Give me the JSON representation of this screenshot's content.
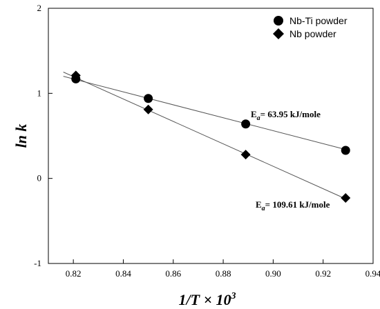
{
  "chart_data": {
    "type": "scatter",
    "xlabel": {
      "main": "1/T × 10",
      "sup": "3"
    },
    "ylabel": "ln k",
    "xlim": [
      0.81,
      0.94
    ],
    "ylim": [
      -1,
      2
    ],
    "x_ticks": [
      "0.82",
      "0.84",
      "0.86",
      "0.88",
      "0.90",
      "0.92",
      "0.94"
    ],
    "y_ticks": [
      "-1",
      "0",
      "1",
      "2"
    ],
    "grid": false,
    "legend_position": "top-right",
    "series": [
      {
        "name": "Nb-Ti powder",
        "marker": "circle",
        "color": "#000000",
        "x": [
          0.821,
          0.85,
          0.889,
          0.929
        ],
        "y": [
          1.17,
          0.94,
          0.64,
          0.33
        ],
        "fit": {
          "x": [
            0.816,
            0.929
          ],
          "y": [
            1.2,
            0.34
          ]
        }
      },
      {
        "name": "Nb powder",
        "marker": "diamond",
        "color": "#000000",
        "x": [
          0.821,
          0.85,
          0.889,
          0.929
        ],
        "y": [
          1.21,
          0.81,
          0.28,
          -0.23
        ],
        "fit": {
          "x": [
            0.816,
            0.929
          ],
          "y": [
            1.25,
            -0.24
          ]
        }
      }
    ],
    "annotations": [
      {
        "prefix": "E",
        "sub": "a",
        "text": "= 63.95 kJ/mole",
        "near_series": "Nb-Ti powder"
      },
      {
        "prefix": "E",
        "sub": "a",
        "text": "= 109.61 kJ/mole",
        "near_series": "Nb powder"
      }
    ]
  }
}
